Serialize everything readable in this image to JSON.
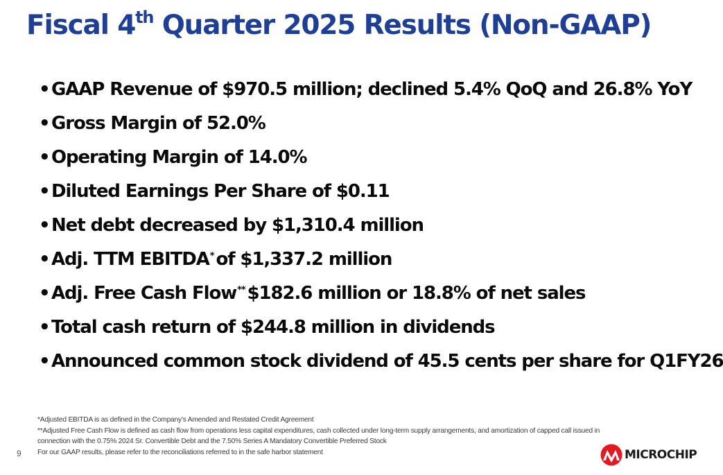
{
  "title": {
    "pre": "Fiscal 4",
    "sup": "th",
    "post": " Quarter 2025 Results (Non-GAAP)"
  },
  "bullets": [
    {
      "text": "GAAP Revenue of $970.5 million; declined 5.4% QoQ and 26.8% YoY"
    },
    {
      "text": "Gross Margin of 52.0%"
    },
    {
      "text": "Operating Margin of 14.0%"
    },
    {
      "text": "Diluted Earnings Per Share of $0.11"
    },
    {
      "text": "Net debt decreased by $1,310.4 million"
    },
    {
      "pre": "Adj. TTM EBITDA",
      "sup": "*",
      "post": "of $1,337.2 million"
    },
    {
      "pre": "Adj. Free Cash Flow",
      "sup": "**",
      "post": "$182.6 million or 18.8% of net sales"
    },
    {
      "text": "Total cash return of $244.8 million in dividends"
    },
    {
      "text": "Announced common stock dividend of 45.5 cents per share for Q1FY26"
    }
  ],
  "bullet_symbol": "•",
  "footnotes": [
    "*Adjusted EBITDA is as defined in the Company’s Amended and Restated Credit Agreement",
    "**Adjusted Free Cash Flow is defined as cash flow from operations less capital expenditures, cash collected under long-term supply arrangements, and amortization of capped call issued in",
    "connection with the 0.75% 2024 Sr. Convertible Debt and the 7.50% Series A Mandatory Convertible Preferred Stock",
    "For our GAAP results, please refer to the reconciliations referred to in the safe harbor statement"
  ],
  "page_number": "9",
  "logo": {
    "text": "MICROCHIP",
    "icon": "microchip-logo-icon",
    "color": "#e21b23"
  },
  "colors": {
    "title": "#1f3f95",
    "text": "#0a0a0a"
  }
}
